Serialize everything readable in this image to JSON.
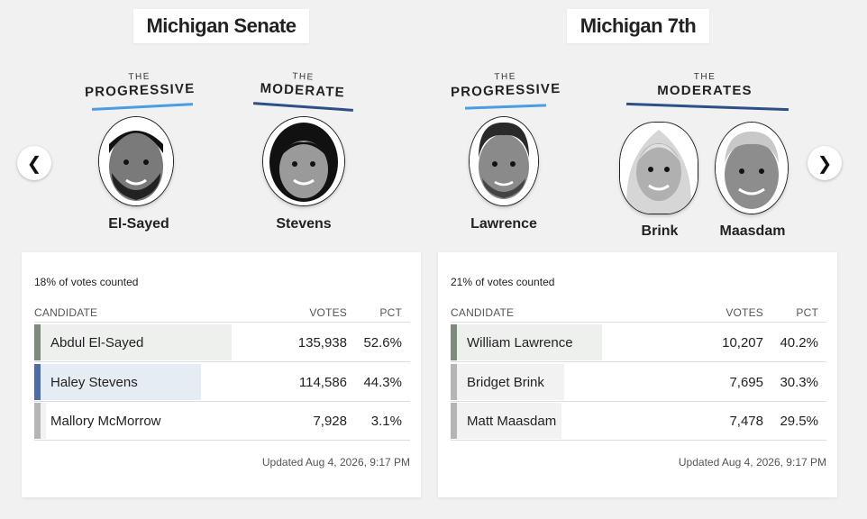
{
  "races": [
    {
      "title": "Michigan Senate",
      "groups": [
        {
          "the": "THE",
          "word": "PROGRESSIVE"
        },
        {
          "the": "THE",
          "word": "MODERATE"
        }
      ],
      "faces": [
        {
          "name": "El-Sayed",
          "icon": "man-beard-face-icon"
        },
        {
          "name": "Stevens",
          "icon": "woman-face-icon"
        }
      ],
      "votes_counted": "18% of votes counted",
      "header": {
        "candidate": "CANDIDATE",
        "votes": "VOTES",
        "pct": "PCT"
      },
      "rows": [
        {
          "name": "Abdul El-Sayed",
          "votes": "135,938",
          "pct": "52.6%",
          "share": 0.526,
          "stripe": "#7d8a7d",
          "bar": "#eef0ee"
        },
        {
          "name": "Haley Stevens",
          "votes": "114,586",
          "pct": "44.3%",
          "share": 0.443,
          "stripe": "#4d6e9e",
          "bar": "#e6ecf4"
        },
        {
          "name": "Mallory McMorrow",
          "votes": "7,928",
          "pct": "3.1%",
          "share": 0.031,
          "stripe": "#b5b5b5",
          "bar": "#f2f2f2"
        }
      ],
      "updated": "Updated Aug 4, 2026, 9:17 PM"
    },
    {
      "title": "Michigan 7th",
      "groups": [
        {
          "the": "THE",
          "word": "PROGRESSIVE"
        },
        {
          "the": "THE",
          "word": "MODERATES"
        }
      ],
      "faces": [
        {
          "name": "Lawrence",
          "icon": "man-face-icon"
        },
        {
          "name": "Brink",
          "icon": "blonde-woman-face-icon"
        },
        {
          "name": "Maasdam",
          "icon": "gray-hair-man-face-icon"
        }
      ],
      "votes_counted": "21% of votes counted",
      "header": {
        "candidate": "CANDIDATE",
        "votes": "VOTES",
        "pct": "PCT"
      },
      "rows": [
        {
          "name": "William Lawrence",
          "votes": "10,207",
          "pct": "40.2%",
          "share": 0.402,
          "stripe": "#7d8a7d",
          "bar": "#eef0ee"
        },
        {
          "name": "Bridget Brink",
          "votes": "7,695",
          "pct": "30.3%",
          "share": 0.303,
          "stripe": "#b5b5b5",
          "bar": "#f2f2f2"
        },
        {
          "name": "Matt Maasdam",
          "votes": "7,478",
          "pct": "29.5%",
          "share": 0.295,
          "stripe": "#b5b5b5",
          "bar": "#f2f2f2"
        }
      ],
      "updated": "Updated Aug 4, 2026, 9:17 PM"
    }
  ],
  "nav": {
    "prev": "❮",
    "next": "❯"
  },
  "colors": {
    "progressive": "#4a9de0",
    "moderate": "#2d4f86"
  }
}
